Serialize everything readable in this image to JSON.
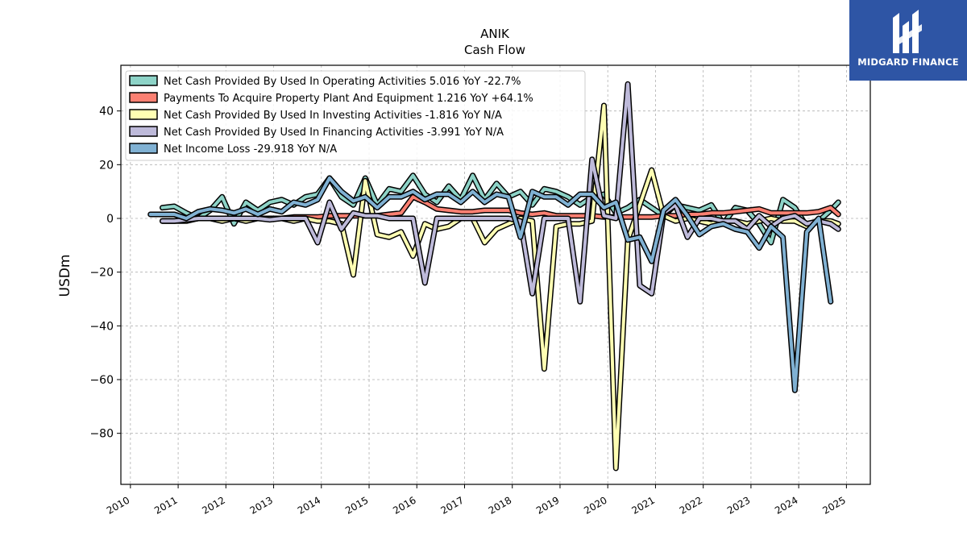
{
  "chart_data": {
    "type": "line",
    "title": "ANIK",
    "subtitle": "Cash Flow",
    "xlabel": "",
    "ylabel": "USDm",
    "xlim": [
      2009.8,
      2025.5
    ],
    "ylim": [
      -99,
      57
    ],
    "x_ticks": [
      2010,
      2011,
      2012,
      2013,
      2014,
      2015,
      2016,
      2017,
      2018,
      2019,
      2020,
      2021,
      2022,
      2023,
      2024,
      2025
    ],
    "y_ticks": [
      40,
      20,
      0,
      -20,
      -40,
      -60,
      -80
    ],
    "y_tick_labels": [
      "40",
      "20",
      "0",
      "−20",
      "−40",
      "−60",
      "−80"
    ],
    "grid": true,
    "legend_position": "upper-left",
    "series": [
      {
        "name": "Net Cash Provided By Used In Operating Activities  5.016 YoY -22.7%",
        "color": "#8dd3c7",
        "points": [
          [
            2010.67,
            4
          ],
          [
            2010.92,
            4.5
          ],
          [
            2011.17,
            2
          ],
          [
            2011.42,
            0
          ],
          [
            2011.67,
            3
          ],
          [
            2011.92,
            8
          ],
          [
            2012.17,
            -2
          ],
          [
            2012.42,
            6
          ],
          [
            2012.67,
            3
          ],
          [
            2012.92,
            6
          ],
          [
            2013.17,
            7
          ],
          [
            2013.42,
            5
          ],
          [
            2013.67,
            8
          ],
          [
            2013.92,
            9
          ],
          [
            2014.17,
            15
          ],
          [
            2014.42,
            8
          ],
          [
            2014.67,
            5
          ],
          [
            2014.92,
            15
          ],
          [
            2015.17,
            5
          ],
          [
            2015.42,
            11
          ],
          [
            2015.67,
            10
          ],
          [
            2015.92,
            16
          ],
          [
            2016.17,
            9
          ],
          [
            2016.42,
            6
          ],
          [
            2016.67,
            12
          ],
          [
            2016.92,
            7
          ],
          [
            2017.17,
            16
          ],
          [
            2017.42,
            7
          ],
          [
            2017.67,
            13
          ],
          [
            2017.92,
            8
          ],
          [
            2018.17,
            10
          ],
          [
            2018.42,
            5
          ],
          [
            2018.67,
            11
          ],
          [
            2018.92,
            10
          ],
          [
            2019.17,
            8
          ],
          [
            2019.42,
            5
          ],
          [
            2019.67,
            8
          ],
          [
            2019.92,
            9
          ],
          [
            2020.17,
            2
          ],
          [
            2020.42,
            4
          ],
          [
            2020.67,
            7
          ],
          [
            2020.92,
            4
          ],
          [
            2021.17,
            1
          ],
          [
            2021.42,
            5
          ],
          [
            2021.67,
            4
          ],
          [
            2021.92,
            3
          ],
          [
            2022.17,
            5
          ],
          [
            2022.42,
            -2
          ],
          [
            2022.67,
            4
          ],
          [
            2022.92,
            3
          ],
          [
            2023.17,
            -2
          ],
          [
            2023.42,
            -9
          ],
          [
            2023.67,
            7
          ],
          [
            2023.92,
            4
          ],
          [
            2024.17,
            -3
          ],
          [
            2024.42,
            -1
          ],
          [
            2024.67,
            3
          ],
          [
            2024.83,
            6
          ]
        ]
      },
      {
        "name": "Payments To Acquire Property Plant And Equipment  1.216 YoY +64.1%",
        "color": "#fb8072",
        "points": [
          [
            2010.67,
            -1
          ],
          [
            2010.92,
            -1
          ],
          [
            2011.17,
            -0.5
          ],
          [
            2011.42,
            0
          ],
          [
            2011.67,
            0
          ],
          [
            2011.92,
            0
          ],
          [
            2012.17,
            0
          ],
          [
            2012.42,
            0
          ],
          [
            2012.67,
            0
          ],
          [
            2012.92,
            0
          ],
          [
            2013.17,
            0
          ],
          [
            2013.42,
            0.5
          ],
          [
            2013.67,
            0.5
          ],
          [
            2013.92,
            0.5
          ],
          [
            2014.17,
            1
          ],
          [
            2014.42,
            1
          ],
          [
            2014.67,
            1
          ],
          [
            2014.92,
            1
          ],
          [
            2015.17,
            1
          ],
          [
            2015.42,
            1.5
          ],
          [
            2015.67,
            2
          ],
          [
            2015.92,
            8
          ],
          [
            2016.17,
            6
          ],
          [
            2016.42,
            3.5
          ],
          [
            2016.67,
            3
          ],
          [
            2016.92,
            2.5
          ],
          [
            2017.17,
            2.5
          ],
          [
            2017.42,
            3
          ],
          [
            2017.67,
            3
          ],
          [
            2017.92,
            3
          ],
          [
            2018.17,
            2
          ],
          [
            2018.42,
            1.5
          ],
          [
            2018.67,
            2
          ],
          [
            2018.92,
            1
          ],
          [
            2019.17,
            1
          ],
          [
            2019.42,
            1
          ],
          [
            2019.67,
            1
          ],
          [
            2019.92,
            0.5
          ],
          [
            2020.17,
            0.5
          ],
          [
            2020.42,
            0.5
          ],
          [
            2020.67,
            0.5
          ],
          [
            2020.92,
            0.5
          ],
          [
            2021.17,
            1
          ],
          [
            2021.42,
            1
          ],
          [
            2021.67,
            1.5
          ],
          [
            2021.92,
            1.5
          ],
          [
            2022.17,
            2
          ],
          [
            2022.42,
            2
          ],
          [
            2022.67,
            2.5
          ],
          [
            2022.92,
            3
          ],
          [
            2023.17,
            3.5
          ],
          [
            2023.42,
            2
          ],
          [
            2023.67,
            2
          ],
          [
            2023.92,
            2
          ],
          [
            2024.17,
            2
          ],
          [
            2024.42,
            2.5
          ],
          [
            2024.67,
            4
          ],
          [
            2024.83,
            1.5
          ]
        ]
      },
      {
        "name": "Net Cash Provided By Used In Investing Activities  -1.816 YoY N/A",
        "color": "#ffffb3",
        "points": [
          [
            2010.67,
            -1
          ],
          [
            2010.92,
            -1
          ],
          [
            2011.17,
            -1
          ],
          [
            2011.42,
            0
          ],
          [
            2011.67,
            0
          ],
          [
            2011.92,
            -1
          ],
          [
            2012.17,
            0
          ],
          [
            2012.42,
            -1
          ],
          [
            2012.67,
            0
          ],
          [
            2012.92,
            0
          ],
          [
            2013.17,
            0
          ],
          [
            2013.42,
            -1
          ],
          [
            2013.67,
            0
          ],
          [
            2013.92,
            -1
          ],
          [
            2014.17,
            -1
          ],
          [
            2014.42,
            -2
          ],
          [
            2014.67,
            -21
          ],
          [
            2014.92,
            14
          ],
          [
            2015.17,
            -6
          ],
          [
            2015.42,
            -7
          ],
          [
            2015.67,
            -5
          ],
          [
            2015.92,
            -14
          ],
          [
            2016.17,
            -2
          ],
          [
            2016.42,
            -4
          ],
          [
            2016.67,
            -3
          ],
          [
            2016.92,
            0
          ],
          [
            2017.17,
            0
          ],
          [
            2017.42,
            -9
          ],
          [
            2017.67,
            -4
          ],
          [
            2017.92,
            -2
          ],
          [
            2018.17,
            0
          ],
          [
            2018.42,
            -1
          ],
          [
            2018.67,
            -56
          ],
          [
            2018.92,
            -3
          ],
          [
            2019.17,
            -2
          ],
          [
            2019.42,
            -2
          ],
          [
            2019.67,
            -1
          ],
          [
            2019.92,
            42
          ],
          [
            2020.17,
            -93
          ],
          [
            2020.42,
            -8
          ],
          [
            2020.67,
            5
          ],
          [
            2020.92,
            18
          ],
          [
            2021.17,
            1
          ],
          [
            2021.42,
            -1
          ],
          [
            2021.67,
            0
          ],
          [
            2021.92,
            -1
          ],
          [
            2022.17,
            -2
          ],
          [
            2022.42,
            -1
          ],
          [
            2022.67,
            -1
          ],
          [
            2022.92,
            -2
          ],
          [
            2023.17,
            -1
          ],
          [
            2023.42,
            0
          ],
          [
            2023.67,
            -1
          ],
          [
            2023.92,
            -1
          ],
          [
            2024.17,
            -3
          ],
          [
            2024.42,
            -1
          ],
          [
            2024.67,
            -1
          ],
          [
            2024.83,
            -2
          ]
        ]
      },
      {
        "name": "Net Cash Provided By Used In Financing Activities  -3.991 YoY N/A",
        "color": "#bebada",
        "points": [
          [
            2010.67,
            -1
          ],
          [
            2010.92,
            -1
          ],
          [
            2011.17,
            -0.5
          ],
          [
            2011.42,
            0
          ],
          [
            2011.67,
            0
          ],
          [
            2011.92,
            0
          ],
          [
            2012.17,
            0
          ],
          [
            2012.42,
            0
          ],
          [
            2012.67,
            0
          ],
          [
            2012.92,
            -0.5
          ],
          [
            2013.17,
            0
          ],
          [
            2013.42,
            0
          ],
          [
            2013.67,
            0
          ],
          [
            2013.92,
            -9
          ],
          [
            2014.17,
            6
          ],
          [
            2014.42,
            -4
          ],
          [
            2014.67,
            2
          ],
          [
            2014.92,
            1
          ],
          [
            2015.17,
            1
          ],
          [
            2015.42,
            0
          ],
          [
            2015.67,
            0
          ],
          [
            2015.92,
            0
          ],
          [
            2016.17,
            -24
          ],
          [
            2016.42,
            0
          ],
          [
            2016.67,
            0
          ],
          [
            2016.92,
            0
          ],
          [
            2017.17,
            0
          ],
          [
            2017.42,
            0
          ],
          [
            2017.67,
            0
          ],
          [
            2017.92,
            0
          ],
          [
            2018.17,
            -1
          ],
          [
            2018.42,
            -28
          ],
          [
            2018.67,
            0
          ],
          [
            2018.92,
            0
          ],
          [
            2019.17,
            0
          ],
          [
            2019.42,
            -31
          ],
          [
            2019.67,
            22
          ],
          [
            2019.92,
            1
          ],
          [
            2020.17,
            0
          ],
          [
            2020.42,
            50
          ],
          [
            2020.67,
            -25
          ],
          [
            2020.92,
            -28
          ],
          [
            2021.17,
            2
          ],
          [
            2021.42,
            5
          ],
          [
            2021.67,
            -7
          ],
          [
            2021.92,
            0
          ],
          [
            2022.17,
            0
          ],
          [
            2022.42,
            -1
          ],
          [
            2022.67,
            -1
          ],
          [
            2022.92,
            -4
          ],
          [
            2023.17,
            1
          ],
          [
            2023.42,
            -3
          ],
          [
            2023.67,
            0
          ],
          [
            2023.92,
            1
          ],
          [
            2024.17,
            -2
          ],
          [
            2024.42,
            -1
          ],
          [
            2024.67,
            -2
          ],
          [
            2024.83,
            -4
          ]
        ]
      },
      {
        "name": "Net Income Loss  -29.918 YoY N/A",
        "color": "#80b1d3",
        "points": [
          [
            2010.42,
            1.5
          ],
          [
            2010.67,
            1.5
          ],
          [
            2010.92,
            1.5
          ],
          [
            2011.17,
            0
          ],
          [
            2011.42,
            2.5
          ],
          [
            2011.67,
            3.5
          ],
          [
            2011.92,
            3
          ],
          [
            2012.17,
            2
          ],
          [
            2012.42,
            3.5
          ],
          [
            2012.67,
            1.5
          ],
          [
            2012.92,
            3.5
          ],
          [
            2013.17,
            2.5
          ],
          [
            2013.42,
            6
          ],
          [
            2013.67,
            5
          ],
          [
            2013.92,
            7
          ],
          [
            2014.17,
            15
          ],
          [
            2014.42,
            10
          ],
          [
            2014.67,
            6.5
          ],
          [
            2014.92,
            8
          ],
          [
            2015.17,
            4
          ],
          [
            2015.42,
            8
          ],
          [
            2015.67,
            8
          ],
          [
            2015.92,
            10
          ],
          [
            2016.17,
            7
          ],
          [
            2016.42,
            9
          ],
          [
            2016.67,
            9
          ],
          [
            2016.92,
            6
          ],
          [
            2017.17,
            10
          ],
          [
            2017.42,
            6
          ],
          [
            2017.67,
            9
          ],
          [
            2017.92,
            8
          ],
          [
            2018.17,
            -7
          ],
          [
            2018.42,
            10
          ],
          [
            2018.67,
            8
          ],
          [
            2018.92,
            8
          ],
          [
            2019.17,
            5
          ],
          [
            2019.42,
            9
          ],
          [
            2019.67,
            9
          ],
          [
            2019.92,
            4
          ],
          [
            2020.17,
            6
          ],
          [
            2020.42,
            -8
          ],
          [
            2020.67,
            -7
          ],
          [
            2020.92,
            -16
          ],
          [
            2021.17,
            3
          ],
          [
            2021.42,
            7
          ],
          [
            2021.67,
            1
          ],
          [
            2021.92,
            -6
          ],
          [
            2022.17,
            -3
          ],
          [
            2022.42,
            -2
          ],
          [
            2022.67,
            -4
          ],
          [
            2022.92,
            -5
          ],
          [
            2023.17,
            -11
          ],
          [
            2023.42,
            -3
          ],
          [
            2023.67,
            -7
          ],
          [
            2023.92,
            -64
          ],
          [
            2024.17,
            -5
          ],
          [
            2024.42,
            0
          ],
          [
            2024.67,
            -31
          ]
        ]
      }
    ]
  },
  "watermark": {
    "text": "MIDGARD FINANCE",
    "background": "#2e55a5"
  }
}
